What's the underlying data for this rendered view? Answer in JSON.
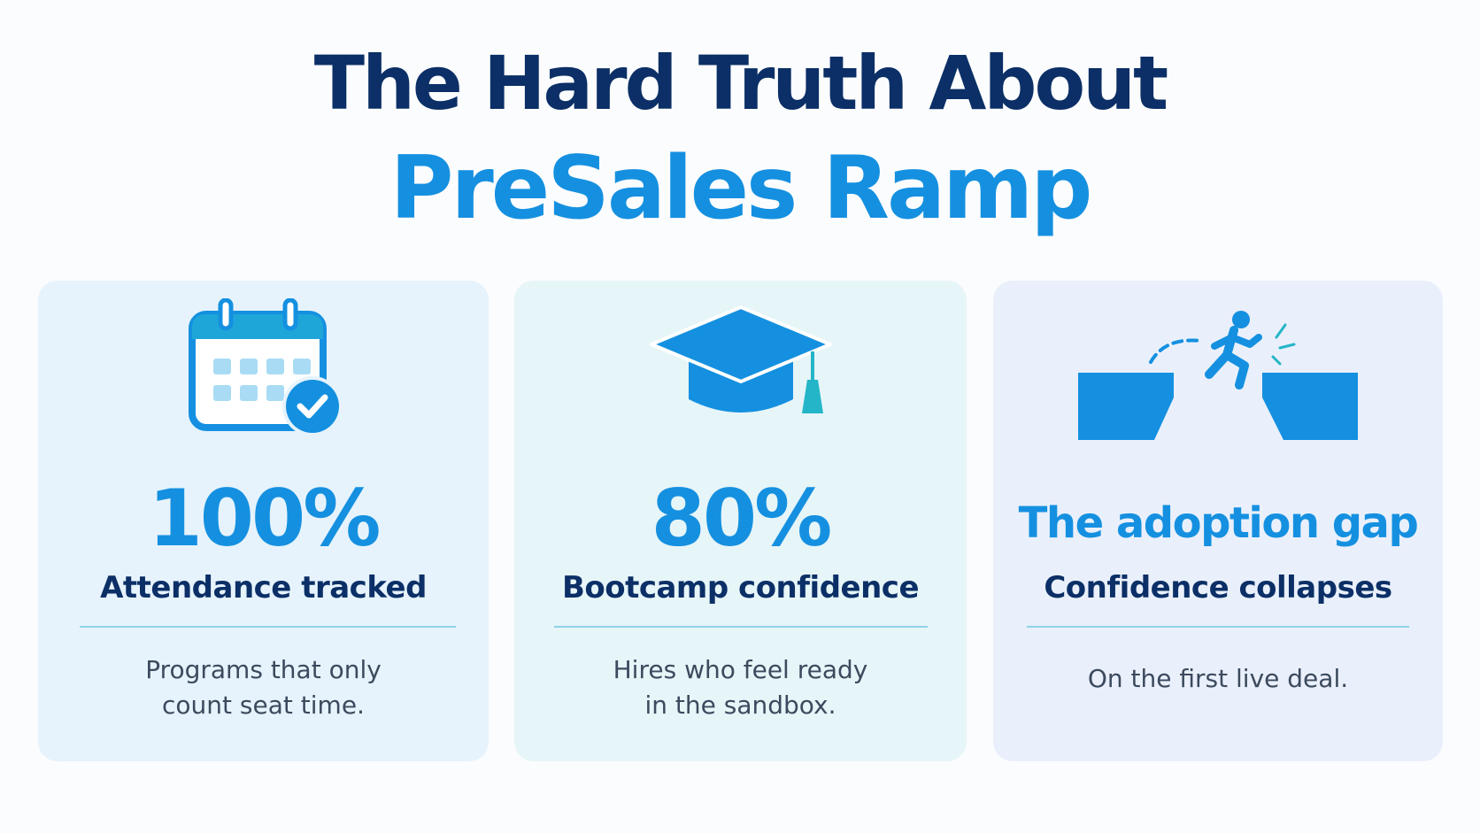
{
  "header": {
    "title_line1": "The Hard Truth About",
    "title_line2": "PreSales Ramp"
  },
  "cards": [
    {
      "icon": "calendar-check-icon",
      "stat": "100%",
      "label": "Attendance tracked",
      "description": "Programs that only count seat time."
    },
    {
      "icon": "graduation-cap-icon",
      "stat": "80%",
      "label": "Bootcamp confidence",
      "description": "Hires who feel ready in the sandbox."
    },
    {
      "icon": "gap-jump-icon",
      "stat": "The adoption gap",
      "label": "Confidence collapses",
      "description": "On the first live deal."
    }
  ],
  "colors": {
    "navy": "#0b2f66",
    "accent_blue": "#1590e0",
    "teal": "#24b5c8",
    "divider": "#8fd2ea"
  }
}
